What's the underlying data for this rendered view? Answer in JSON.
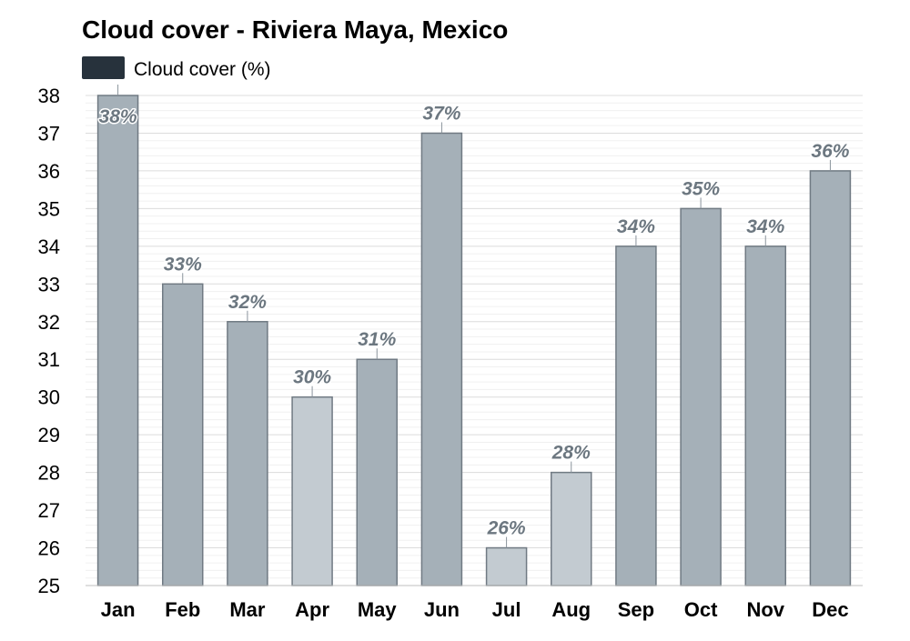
{
  "chart_data": {
    "type": "bar",
    "title": "Cloud cover - Riviera Maya, Mexico",
    "legend": {
      "label": "Cloud cover (%)",
      "color": "#27323c",
      "placement": "top-left"
    },
    "categories": [
      "Jan",
      "Feb",
      "Mar",
      "Apr",
      "May",
      "Jun",
      "Jul",
      "Aug",
      "Sep",
      "Oct",
      "Nov",
      "Dec"
    ],
    "values": [
      38,
      33,
      32,
      30,
      31,
      37,
      26,
      28,
      34,
      35,
      34,
      36
    ],
    "value_labels": [
      "38%",
      "33%",
      "32%",
      "30%",
      "31%",
      "37%",
      "26%",
      "28%",
      "34%",
      "35%",
      "34%",
      "36%"
    ],
    "bar_colors": [
      "#a5b0b8",
      "#a5b0b8",
      "#a5b0b8",
      "#c3cbd1",
      "#a5b0b8",
      "#a5b0b8",
      "#c3cbd1",
      "#c3cbd1",
      "#a5b0b8",
      "#a5b0b8",
      "#a5b0b8",
      "#a5b0b8"
    ],
    "bar_edge_color": "#707a83",
    "label_color": "#6c7780",
    "ylim": [
      25,
      38
    ],
    "yticks": [
      "25",
      "26",
      "27",
      "28",
      "29",
      "30",
      "31",
      "32",
      "33",
      "34",
      "35",
      "36",
      "37",
      "38"
    ],
    "grid": true,
    "xlabel": "",
    "ylabel": ""
  }
}
